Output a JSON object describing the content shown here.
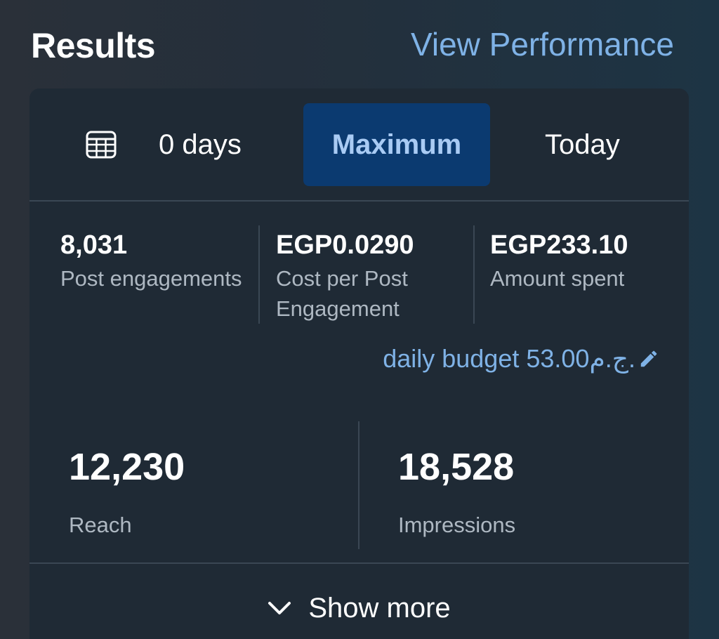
{
  "header": {
    "title": "Results",
    "view_performance": "View Performance"
  },
  "date_range": {
    "days_label": "0 days",
    "maximum_label": "Maximum",
    "today_label": "Today",
    "selected": "Maximum"
  },
  "metrics": [
    {
      "value": "8,031",
      "label": "Post engagements"
    },
    {
      "value": "EGP0.0290",
      "label": "Cost per Post Engagement"
    },
    {
      "value": "EGP233.10",
      "label": "Amount spent"
    }
  ],
  "budget": {
    "text": "daily budget 53.00ج.م."
  },
  "summary": [
    {
      "value": "12,230",
      "label": "Reach"
    },
    {
      "value": "18,528",
      "label": "Impressions"
    }
  ],
  "show_more": "Show more",
  "colors": {
    "accent": "#7fb2e6",
    "selected_bg": "#0b3a70",
    "card_bg": "#1f2a35"
  },
  "icons": [
    "calendar-icon",
    "pencil-icon",
    "chevron-down-icon"
  ]
}
